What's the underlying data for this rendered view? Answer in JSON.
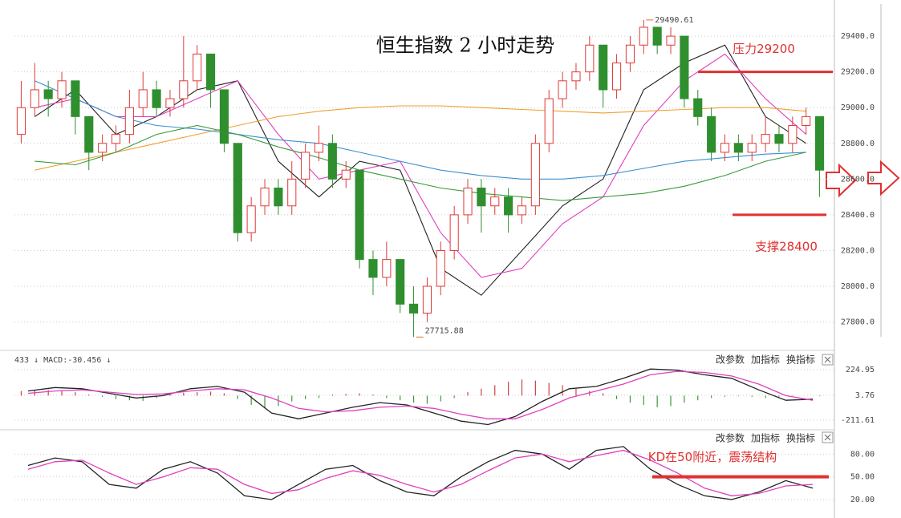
{
  "chart_data": [
    {
      "type": "candlestick",
      "title": "恒生指数 2 小时走势",
      "open": [
        28850,
        29000,
        29100,
        29050,
        29150,
        28950,
        28750,
        28800,
        28850,
        29000,
        29100,
        29000,
        29050,
        29150,
        29300,
        29100,
        28800,
        28300,
        28450,
        28550,
        28450,
        28600,
        28750,
        28800,
        28600,
        28650,
        28150,
        28050,
        28150,
        27900,
        27850,
        28000,
        28200,
        28400,
        28550,
        28450,
        28500,
        28400,
        28450,
        28800,
        29050,
        29150,
        29200,
        29350,
        29100,
        29250,
        29350,
        29450,
        29350,
        29400,
        29050,
        28950,
        28750,
        28800,
        28750,
        28800,
        28850,
        28800,
        28900,
        28950
      ],
      "high": [
        29150,
        29250,
        29150,
        29200,
        29150,
        28950,
        28850,
        28900,
        29100,
        29200,
        29150,
        29100,
        29400,
        29350,
        29300,
        29100,
        28800,
        28500,
        28600,
        28600,
        28700,
        28800,
        28900,
        28850,
        28700,
        28650,
        28200,
        28250,
        28150,
        28000,
        28050,
        28250,
        28450,
        28600,
        28600,
        28550,
        28550,
        28500,
        28850,
        29100,
        29200,
        29250,
        29400,
        29350,
        29300,
        29400,
        29490.61,
        29450,
        29450,
        29400,
        29100,
        29000,
        28850,
        28850,
        28850,
        28950,
        28900,
        28950,
        29000,
        28950
      ],
      "low": [
        28800,
        28950,
        28950,
        29000,
        28850,
        28650,
        28700,
        28750,
        28800,
        28950,
        28950,
        28950,
        29000,
        29100,
        29000,
        28750,
        28250,
        28250,
        28400,
        28400,
        28400,
        28550,
        28700,
        28550,
        28550,
        28100,
        27950,
        28000,
        27850,
        27715.88,
        27800,
        27950,
        28150,
        28350,
        28300,
        28400,
        28300,
        28350,
        28400,
        28750,
        29000,
        29100,
        29150,
        29000,
        29050,
        29200,
        29300,
        29300,
        29300,
        29000,
        28900,
        28700,
        28700,
        28700,
        28700,
        28750,
        28750,
        28750,
        28850,
        28500
      ],
      "close": [
        29000,
        29100,
        29050,
        29150,
        28950,
        28750,
        28800,
        28850,
        29000,
        29100,
        29000,
        29050,
        29150,
        29300,
        29100,
        28800,
        28300,
        28450,
        28550,
        28450,
        28600,
        28750,
        28800,
        28600,
        28650,
        28150,
        28050,
        28150,
        27900,
        27850,
        28000,
        28200,
        28400,
        28550,
        28450,
        28500,
        28400,
        28450,
        28800,
        29050,
        29150,
        29200,
        29350,
        29100,
        29250,
        29350,
        29450,
        29350,
        29400,
        29050,
        28950,
        28750,
        28800,
        28750,
        28800,
        28850,
        28800,
        28900,
        28950,
        28650
      ],
      "up_color": "#e03a3a",
      "down_color": "#2f8f2f",
      "ylim": [
        27650,
        29580
      ],
      "yticks": [
        {
          "value": 27800,
          "label": "27800.0"
        },
        {
          "value": 28000,
          "label": "28000.0"
        },
        {
          "value": 28200,
          "label": "28200.0"
        },
        {
          "value": 28400,
          "label": "28400.0"
        },
        {
          "value": 28600,
          "label": "28600.0"
        },
        {
          "value": 28800,
          "label": "28800.0"
        },
        {
          "value": 29000,
          "label": "29000.0"
        },
        {
          "value": 29200,
          "label": "29200.0"
        },
        {
          "value": 29400,
          "label": "29400.0"
        }
      ],
      "grid": true,
      "overlays": [
        {
          "color": "#222222",
          "values": [
            28950,
            29100,
            28850,
            28950,
            29100,
            29150,
            28700,
            28500,
            28700,
            28650,
            28100,
            27950,
            28200,
            28450,
            28600,
            29100,
            29250,
            29350,
            28950,
            28800
          ]
        },
        {
          "color": "#e040c0",
          "values": [
            29000,
            29050,
            28950,
            28950,
            29050,
            29150,
            28850,
            28600,
            28650,
            28700,
            28300,
            28050,
            28100,
            28350,
            28500,
            28900,
            29150,
            29300,
            29050,
            28850
          ]
        },
        {
          "color": "#f0a030",
          "values": [
            28650,
            28700,
            28750,
            28800,
            28850,
            28900,
            28950,
            28980,
            29000,
            29010,
            29010,
            29000,
            28990,
            28980,
            28970,
            28980,
            28990,
            29000,
            29000,
            28980
          ]
        },
        {
          "color": "#3a8fd0",
          "values": [
            29150,
            29050,
            28950,
            28900,
            28880,
            28850,
            28820,
            28800,
            28750,
            28700,
            28650,
            28620,
            28600,
            28600,
            28620,
            28660,
            28700,
            28720,
            28740,
            28750
          ]
        },
        {
          "color": "#3a9a3a",
          "values": [
            28700,
            28680,
            28750,
            28850,
            28900,
            28850,
            28780,
            28720,
            28650,
            28600,
            28550,
            28520,
            28500,
            28480,
            28500,
            28520,
            28560,
            28620,
            28700,
            28750
          ]
        }
      ],
      "max_label": "29490.61",
      "min_label": "27715.88",
      "resistance": {
        "label": "压力29200",
        "value": 29200
      },
      "support": {
        "label": "支撑28400",
        "value": 28400
      }
    },
    {
      "type": "macd",
      "label": "433 ↓ MACD:-30.456 ↓",
      "buttons": [
        "改参数",
        "加指标",
        "换指标"
      ],
      "ylim": [
        -288,
        370
      ],
      "yticks": [
        -211.61,
        3.76,
        224.95
      ],
      "histogram": {
        "up_color": "#d04040",
        "down_color": "#3a9a3a",
        "values": [
          40,
          45,
          50,
          45,
          30,
          10,
          -10,
          -30,
          -40,
          -45,
          -20,
          10,
          25,
          30,
          35,
          20,
          -30,
          -80,
          -110,
          -90,
          -50,
          -30,
          -20,
          10,
          15,
          20,
          10,
          -20,
          -40,
          -60,
          -70,
          -50,
          -20,
          30,
          60,
          90,
          120,
          140,
          130,
          110,
          90,
          60,
          40,
          20,
          -30,
          -60,
          -80,
          -100,
          -90,
          -60,
          -40,
          -20,
          -10,
          -5,
          -10,
          -20,
          -10,
          5,
          0,
          -5
        ]
      },
      "lines": [
        {
          "color": "#222222",
          "values": [
            40,
            70,
            60,
            20,
            -20,
            0,
            60,
            80,
            30,
            -150,
            -200,
            -150,
            -100,
            -60,
            -80,
            -150,
            -220,
            -250,
            -180,
            -50,
            60,
            80,
            150,
            230,
            220,
            180,
            150,
            50,
            -40,
            -30
          ]
        },
        {
          "color": "#e040c0",
          "values": [
            20,
            40,
            50,
            30,
            10,
            15,
            40,
            60,
            50,
            -20,
            -110,
            -140,
            -130,
            -100,
            -90,
            -110,
            -160,
            -200,
            -200,
            -120,
            -20,
            40,
            100,
            180,
            210,
            200,
            170,
            100,
            0,
            -40
          ]
        }
      ]
    },
    {
      "type": "kd",
      "buttons": [
        "改参数",
        "加指标",
        "换指标"
      ],
      "ylim": [
        2,
        110
      ],
      "yticks": [
        {
          "value": 20,
          "label": "20.00"
        },
        {
          "value": 50,
          "label": "50.00"
        },
        {
          "value": 80,
          "label": "80.00"
        }
      ],
      "lines": [
        {
          "color": "#222222",
          "values": [
            65,
            75,
            70,
            40,
            35,
            60,
            70,
            55,
            25,
            20,
            40,
            60,
            65,
            45,
            30,
            25,
            50,
            70,
            85,
            80,
            60,
            85,
            90,
            60,
            40,
            25,
            20,
            30,
            45,
            35
          ]
        },
        {
          "color": "#e040c0",
          "values": [
            60,
            70,
            72,
            55,
            40,
            50,
            62,
            60,
            40,
            28,
            33,
            48,
            58,
            52,
            40,
            30,
            40,
            58,
            75,
            80,
            70,
            78,
            85,
            72,
            55,
            35,
            25,
            28,
            38,
            40
          ]
        }
      ],
      "annotation": {
        "label": "KD在50附近，震荡结构",
        "value": 50
      }
    }
  ]
}
